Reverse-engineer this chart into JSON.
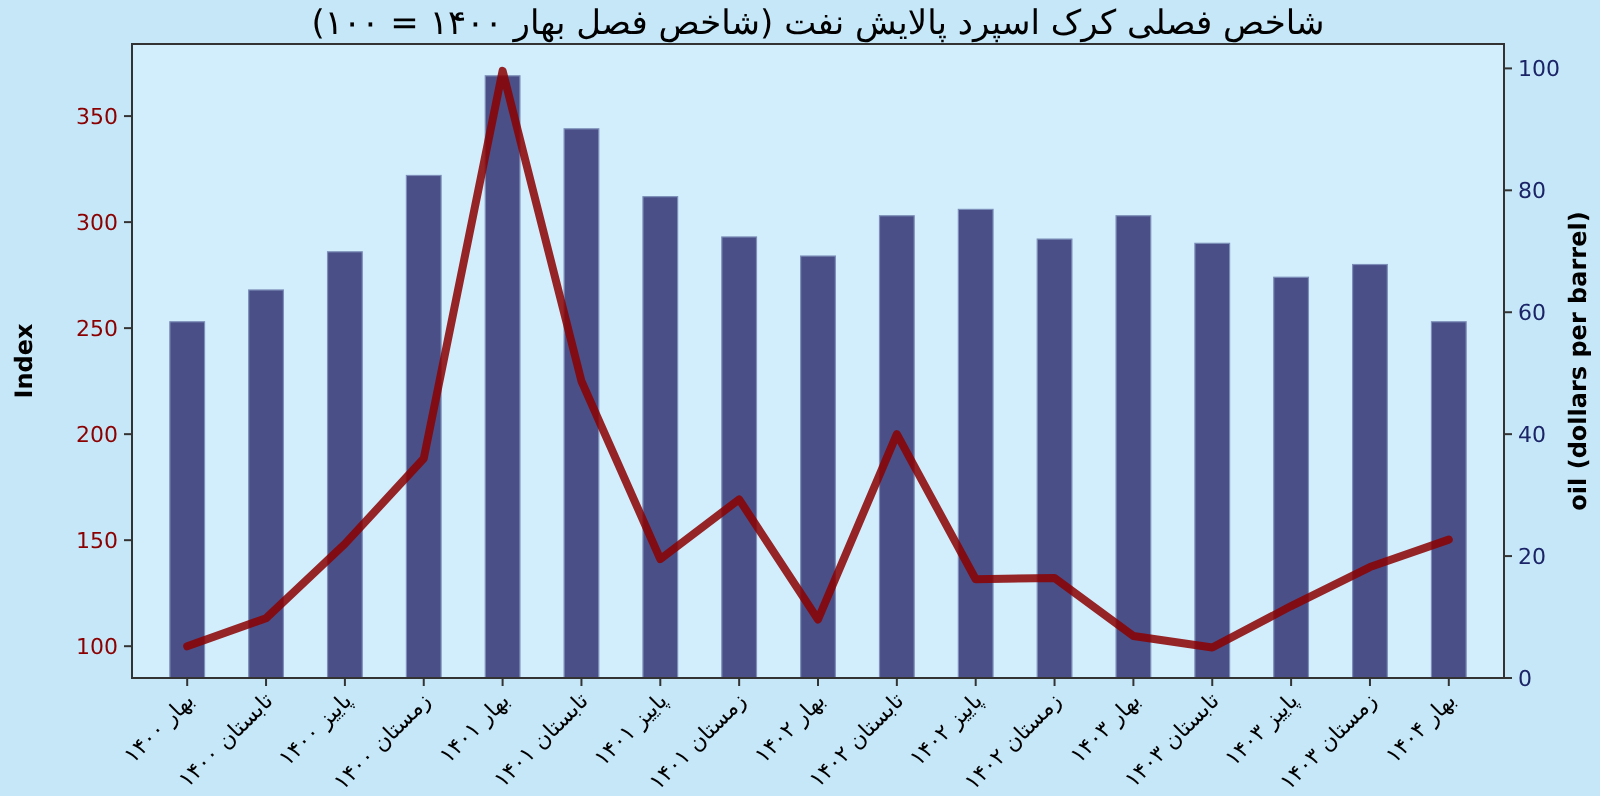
{
  "chart_data": {
    "type": "bar",
    "title": "شاخص فصلی کرک اسپرد پالایش نفت (شاخص فصل بهار ۱۴۰۰ = ۱۰۰)",
    "ylabel": "Index",
    "y2label": "oil (dollars per barrel)",
    "categories": [
      "بهار ۱۴۰۰",
      "تابستان ۱۴۰۰",
      "پاییز ۱۴۰۰",
      "زمستان ۱۴۰۰",
      "بهار ۱۴۰۱",
      "تابستان ۱۴۰۱",
      "پاییز ۱۴۰۱",
      "زمستان ۱۴۰۱",
      "بهار ۱۴۰۲",
      "تابستان ۱۴۰۲",
      "پاییز ۱۴۰۲",
      "زمستان ۱۴۰۲",
      "بهار ۱۴۰۳",
      "تابستان ۱۴۰۳",
      "پاییز ۱۴۰۳",
      "زمستان ۱۴۰۳",
      "بهار ۱۴۰۴"
    ],
    "series": [
      {
        "color": "#4a4f87",
        "values": [
          253,
          268,
          286,
          322,
          369,
          344,
          312,
          293,
          284,
          303,
          306,
          292,
          303,
          290,
          274,
          280,
          253
        ]
      },
      {
        "type": "line",
        "axis": "y2",
        "color": "#8b0000",
        "values": [
          5.2,
          9.8,
          22,
          36,
          99.6,
          48.7,
          19.5,
          29.3,
          9.6,
          40,
          16.2,
          16.4,
          6.9,
          5.0,
          11.8,
          18.2,
          22.7
        ]
      }
    ],
    "ylim": [
      85,
      384
    ],
    "yticks": [
      100,
      150,
      200,
      250,
      300,
      350
    ],
    "y2lim": [
      0,
      104
    ],
    "y2ticks": [
      0,
      20,
      40,
      60,
      80,
      100
    ],
    "grid": false,
    "line_style": "solid",
    "marker": "none"
  }
}
